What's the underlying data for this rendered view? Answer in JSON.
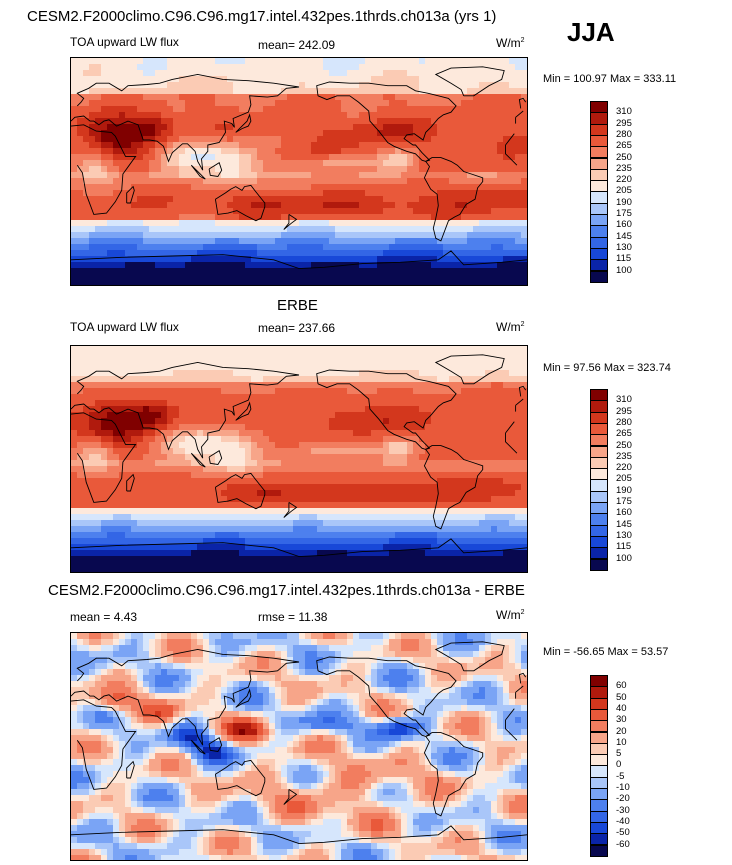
{
  "header": {
    "title": "CESM2.F2000climo.C96.C96.mg17.intel.432pes.1thrds.ch013a (yrs 1)",
    "season": "JJA"
  },
  "panels": [
    {
      "id": "model",
      "heading": "",
      "left_label": "TOA upward LW flux",
      "center_label": "mean= 242.09",
      "right_label": "W/m",
      "right_label_sup": "2",
      "minmax": "Min = 100.97 Max = 333.11"
    },
    {
      "id": "obs",
      "heading": "ERBE",
      "left_label": "TOA upward LW flux",
      "center_label": "mean= 237.66",
      "right_label": "W/m",
      "right_label_sup": "2",
      "minmax": "Min =  97.56 Max = 323.74"
    },
    {
      "id": "diff",
      "heading": "CESM2.F2000climo.C96.C96.mg17.intel.432pes.1thrds.ch013a - ERBE",
      "left_label": "mean =   4.43",
      "center_label": "rmse =  11.38",
      "right_label": "W/m",
      "right_label_sup": "2",
      "minmax": "Min = -56.65 Max =  53.57"
    }
  ],
  "chart_data": [
    {
      "type": "heatmap",
      "title": "TOA upward LW flux",
      "units": "W/m2",
      "mean": 242.09,
      "min": 100.97,
      "max": 333.11,
      "colorbar": {
        "levels": [
          100,
          115,
          130,
          145,
          160,
          175,
          190,
          205,
          220,
          235,
          250,
          265,
          280,
          295,
          310
        ],
        "colors": [
          "#08084f",
          "#0a24a8",
          "#1848d8",
          "#3366e6",
          "#4d80ee",
          "#7aa4f5",
          "#a9c6f9",
          "#d6e6fc",
          "#fde9dc",
          "#fbcbb4",
          "#f7a589",
          "#f27d5f",
          "#e9593a",
          "#d3371d",
          "#b01a0d",
          "#800000"
        ]
      }
    },
    {
      "type": "heatmap",
      "title": "TOA upward LW flux",
      "units": "W/m2",
      "mean": 237.66,
      "min": 97.56,
      "max": 323.74,
      "colorbar": {
        "levels": [
          100,
          115,
          130,
          145,
          160,
          175,
          190,
          205,
          220,
          235,
          250,
          265,
          280,
          295,
          310
        ],
        "colors": [
          "#08084f",
          "#0a24a8",
          "#1848d8",
          "#3366e6",
          "#4d80ee",
          "#7aa4f5",
          "#a9c6f9",
          "#d6e6fc",
          "#fde9dc",
          "#fbcbb4",
          "#f7a589",
          "#f27d5f",
          "#e9593a",
          "#d3371d",
          "#b01a0d",
          "#800000"
        ]
      }
    },
    {
      "type": "heatmap",
      "title": "",
      "units": "W/m2",
      "mean": 4.43,
      "rmse": 11.38,
      "min": -56.65,
      "max": 53.57,
      "colorbar": {
        "levels": [
          -60,
          -50,
          -40,
          -30,
          -20,
          -10,
          -5,
          0,
          5,
          10,
          20,
          30,
          40,
          50,
          60
        ],
        "colors": [
          "#08084f",
          "#0a24a8",
          "#1848d8",
          "#3366e6",
          "#4d80ee",
          "#7aa4f5",
          "#a9c6f9",
          "#d6e6fc",
          "#fde9dc",
          "#fbcbb4",
          "#f7a589",
          "#f27d5f",
          "#e9593a",
          "#d3371d",
          "#b01a0d",
          "#800000"
        ]
      }
    }
  ]
}
